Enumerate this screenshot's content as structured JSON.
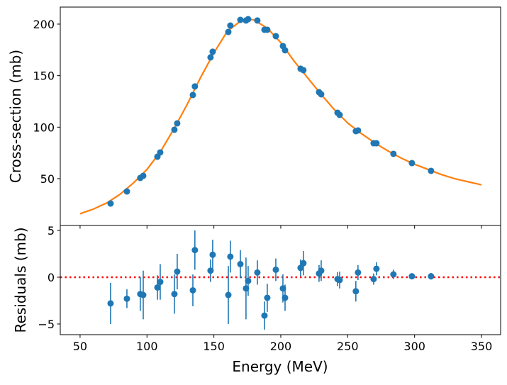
{
  "chart_data": [
    {
      "panel": "top",
      "type": "scatter",
      "xlabel": "",
      "ylabel": "Cross-section (mb)",
      "xlim": [
        35.2,
        364.3
      ],
      "ylim": [
        4.6,
        216.5
      ],
      "xticks": [
        50,
        100,
        150,
        200,
        250,
        300,
        350
      ],
      "yticks": [
        50,
        100,
        150,
        200
      ],
      "grid": false,
      "colors": {
        "points": "#1f77b4",
        "fit": "#ff7f0e"
      },
      "points": {
        "x": [
          72.8,
          85,
          95,
          97.2,
          107.8,
          109.9,
          120.5,
          122.6,
          134.3,
          135.8,
          147.5,
          149.1,
          160.8,
          162.3,
          169.8,
          174,
          175.6,
          182.5,
          187.8,
          189.9,
          196.3,
          201.6,
          203.2,
          214.8,
          216.9,
          228.6,
          230.2,
          242.4,
          244,
          256.1,
          257.7,
          269.4,
          271.5,
          284.2,
          298,
          312.3
        ],
        "y": [
          25.9,
          37.6,
          50.7,
          52.8,
          71.3,
          75.5,
          97.5,
          103.7,
          131.2,
          139.5,
          167.7,
          173.2,
          192.4,
          198.6,
          204.1,
          203.5,
          204.8,
          203.5,
          194.5,
          194.5,
          188.3,
          178.7,
          174.6,
          156.7,
          155.3,
          133.9,
          131.9,
          114.0,
          111.9,
          96.1,
          96.8,
          84.4,
          84.4,
          74.1,
          65.1,
          57.6
        ]
      },
      "fit_curve": {
        "x": [
          50,
          60,
          70,
          80,
          90,
          100,
          110,
          120,
          130,
          140,
          150,
          160,
          170,
          175,
          180,
          190,
          200,
          210,
          220,
          230,
          240,
          250,
          260,
          270,
          280,
          290,
          300,
          310,
          320,
          330,
          340,
          350
        ],
        "y": [
          16,
          20.5,
          26.5,
          35,
          46,
          59,
          76,
          98,
          122,
          148,
          172,
          193,
          203,
          205,
          204,
          196,
          182,
          164,
          148,
          132,
          117,
          104,
          94,
          85,
          77,
          70,
          64,
          59,
          54,
          50,
          47,
          44
        ]
      }
    },
    {
      "panel": "bottom",
      "type": "scatter",
      "xlabel": "Energy (MeV)",
      "ylabel": "Residuals (mb)",
      "xlim": [
        35.2,
        364.3
      ],
      "ylim": [
        -6.14,
        5.53
      ],
      "xticks": [
        50,
        100,
        150,
        200,
        250,
        300,
        350
      ],
      "yticks": [
        -5,
        0,
        5
      ],
      "grid": false,
      "reference_line": {
        "y": 0,
        "style": "dotted",
        "color": "#ff0000"
      },
      "colors": {
        "points": "#1f77b4"
      },
      "points": {
        "x": [
          72.8,
          85,
          95,
          97.2,
          107.8,
          109.9,
          120.5,
          122.6,
          134.3,
          135.8,
          147.5,
          149.1,
          160.8,
          162.3,
          169.8,
          174,
          175.6,
          182.5,
          187.8,
          189.9,
          196.3,
          201.6,
          203.2,
          214.8,
          216.9,
          228.6,
          230.2,
          242.4,
          244,
          256.1,
          257.7,
          269.4,
          271.5,
          284.2,
          298,
          312.3
        ],
        "y": [
          -2.8,
          -2.3,
          -1.8,
          -1.9,
          -1.1,
          -0.5,
          -1.8,
          0.6,
          -1.4,
          2.9,
          0.7,
          2.4,
          -1.9,
          2.2,
          1.4,
          -1.2,
          -0.4,
          0.5,
          -4.1,
          -2.2,
          0.8,
          -1.2,
          -2.2,
          1.0,
          1.5,
          0.4,
          0.7,
          -0.2,
          -0.3,
          -1.5,
          0.5,
          -0.2,
          0.9,
          0.3,
          0.1,
          0.1
        ],
        "yerr": [
          2.2,
          1.0,
          1.8,
          2.6,
          1.3,
          1.9,
          2.1,
          1.9,
          1.7,
          2.1,
          1.2,
          1.6,
          3.1,
          1.7,
          1.5,
          3.3,
          1.6,
          1.3,
          1.5,
          1.5,
          1.2,
          1.5,
          1.4,
          0.9,
          1.3,
          0.9,
          1.1,
          0.75,
          0.9,
          1.1,
          0.8,
          0.6,
          0.7,
          0.5,
          0.3,
          0.35
        ]
      }
    }
  ]
}
